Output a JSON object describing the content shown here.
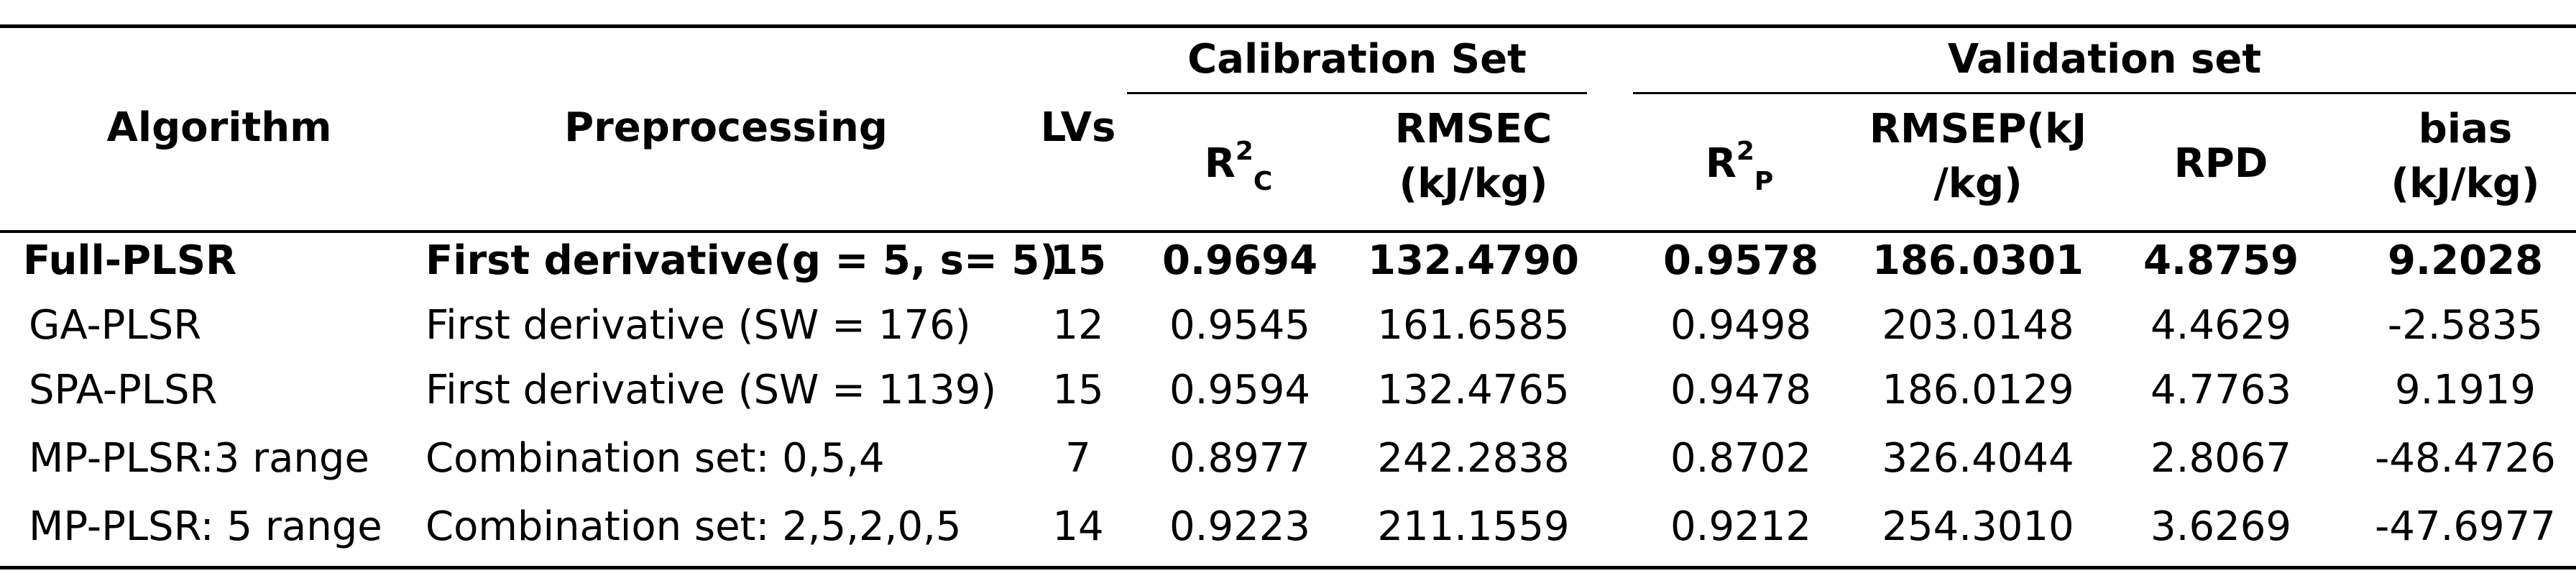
{
  "table": {
    "headers": {
      "algorithm": "Algorithm",
      "preprocessing": "Preprocessing",
      "lvs": "LVs",
      "calibration_group": "Calibration Set",
      "validation_group": "Validation set",
      "r2c_base": "R",
      "r2c_sup": "2",
      "r2c_sub": "C",
      "rmsec_line1": "RMSEC",
      "rmsec_line2": "(kJ/kg)",
      "r2p_base": "R",
      "r2p_sup": "2",
      "r2p_sub": "P",
      "rmsep_line1": "RMSEP(kJ",
      "rmsep_line2": "/kg)",
      "rpd": "RPD",
      "bias_line1": "bias",
      "bias_line2": "(kJ/kg)"
    },
    "rows": [
      {
        "algorithm": "Full-PLSR",
        "preprocessing": "First derivative(g = 5, s= 5)",
        "lvs": "15",
        "r2c": "0.9694",
        "rmsec": "132.4790",
        "r2p": "0.9578",
        "rmsep": "186.0301",
        "rpd": "4.8759",
        "bias": "9.2028"
      },
      {
        "algorithm": "GA-PLSR",
        "preprocessing": "First derivative (SW = 176)",
        "lvs": "12",
        "r2c": "0.9545",
        "rmsec": "161.6585",
        "r2p": "0.9498",
        "rmsep": "203.0148",
        "rpd": "4.4629",
        "bias": "-2.5835"
      },
      {
        "algorithm": "SPA-PLSR",
        "preprocessing": "First derivative (SW = 1139)",
        "lvs": "15",
        "r2c": "0.9594",
        "rmsec": "132.4765",
        "r2p": "0.9478",
        "rmsep": "186.0129",
        "rpd": "4.7763",
        "bias": "9.1919"
      },
      {
        "algorithm": "MP-PLSR:3 range",
        "preprocessing": "Combination set: 0,5,4",
        "lvs": "7",
        "r2c": "0.8977",
        "rmsec": "242.2838",
        "r2p": "0.8702",
        "rmsep": "326.4044",
        "rpd": "2.8067",
        "bias": "-48.4726"
      },
      {
        "algorithm": "MP-PLSR: 5 range",
        "preprocessing": "Combination set: 2,5,2,0,5",
        "lvs": "14",
        "r2c": "0.9223",
        "rmsec": "211.1559",
        "r2p": "0.9212",
        "rmsep": "254.3010",
        "rpd": "3.6269",
        "bias": "-47.6977"
      }
    ]
  }
}
